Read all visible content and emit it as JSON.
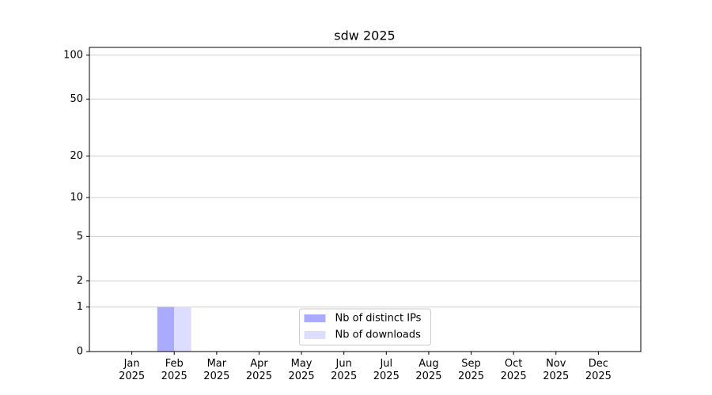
{
  "chart_data": {
    "type": "bar",
    "title": "sdw 2025",
    "categories": [
      "Jan\n2025",
      "Feb\n2025",
      "Mar\n2025",
      "Apr\n2025",
      "May\n2025",
      "Jun\n2025",
      "Jul\n2025",
      "Aug\n2025",
      "Sep\n2025",
      "Oct\n2025",
      "Nov\n2025",
      "Dec\n2025"
    ],
    "series": [
      {
        "name": "Nb of distinct IPs",
        "color": "#aaaaff",
        "values": [
          0,
          1,
          0,
          0,
          0,
          0,
          0,
          0,
          0,
          0,
          0,
          0
        ]
      },
      {
        "name": "Nb of downloads",
        "color": "#ddddff",
        "values": [
          0,
          1,
          0,
          0,
          0,
          0,
          0,
          0,
          0,
          0,
          0,
          0
        ]
      }
    ],
    "yscale": "log1p",
    "ylim": [
      0,
      113
    ],
    "yticks": [
      0,
      1,
      2,
      5,
      10,
      20,
      50,
      100
    ],
    "grid": true,
    "legend": "lower center"
  }
}
